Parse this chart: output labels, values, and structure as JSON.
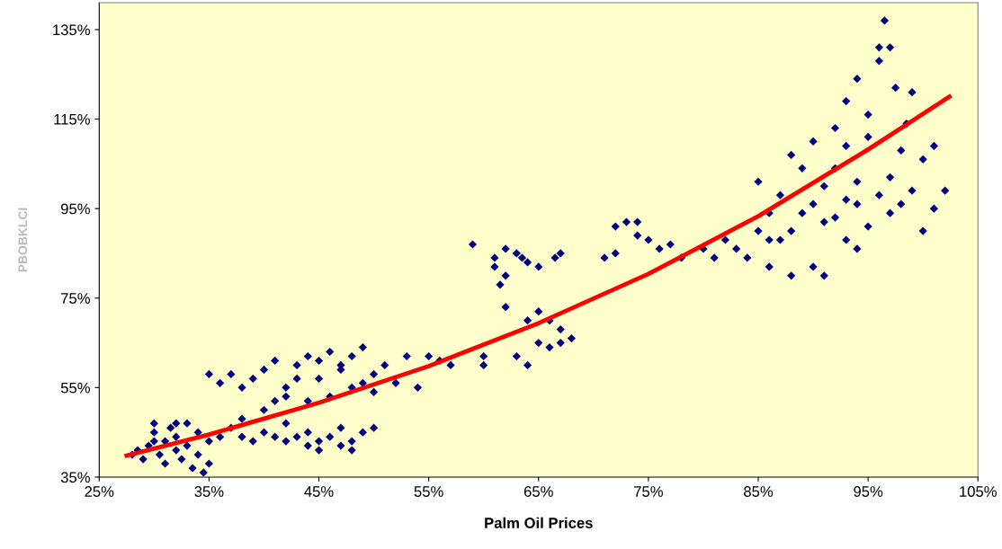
{
  "chart_data": {
    "type": "scatter",
    "xlabel": "Palm Oil Prices",
    "ylabel": "PBOBKLCI",
    "xlim": [
      25,
      105
    ],
    "ylim": [
      35,
      141
    ],
    "xticks": [
      {
        "value": 25,
        "label": "25%"
      },
      {
        "value": 35,
        "label": "35%"
      },
      {
        "value": 45,
        "label": "45%"
      },
      {
        "value": 55,
        "label": "55%"
      },
      {
        "value": 65,
        "label": "65%"
      },
      {
        "value": 75,
        "label": "75%"
      },
      {
        "value": 85,
        "label": "85%"
      },
      {
        "value": 95,
        "label": "95%"
      },
      {
        "value": 105,
        "label": "105%"
      }
    ],
    "yticks": [
      {
        "value": 35,
        "label": "35%"
      },
      {
        "value": 55,
        "label": "55%"
      },
      {
        "value": 75,
        "label": "75%"
      },
      {
        "value": 95,
        "label": "95%"
      },
      {
        "value": 115,
        "label": "115%"
      },
      {
        "value": 135,
        "label": "135%"
      }
    ],
    "grid": false,
    "legend": false,
    "series": [
      {
        "color": "#000080",
        "marker": "diamond",
        "x": [
          28,
          29,
          29.5,
          30,
          30,
          30.5,
          31,
          31,
          31.5,
          32,
          32,
          32.5,
          33,
          33,
          33.5,
          34,
          34,
          34.5,
          35,
          35,
          28.5,
          30,
          32,
          36,
          37,
          38,
          39,
          40,
          41,
          42,
          43,
          44,
          45,
          46,
          47,
          48,
          49,
          50,
          42,
          45,
          47,
          44,
          48,
          35,
          36,
          37,
          38,
          39,
          40,
          41,
          42,
          43,
          44,
          45,
          46,
          47,
          48,
          49,
          50,
          51,
          52,
          53,
          54,
          55,
          56,
          57,
          38,
          40,
          42,
          44,
          46,
          47,
          49,
          43,
          41,
          48,
          45,
          50,
          59,
          60,
          60,
          61,
          61,
          62,
          62,
          62,
          63,
          63,
          64,
          64,
          64,
          65,
          65,
          65,
          66,
          66,
          66.5,
          67,
          67,
          67,
          68,
          61.5,
          63.5,
          71,
          72,
          72,
          73,
          74,
          74,
          75,
          76,
          77,
          78,
          80,
          81,
          82,
          83,
          84,
          85,
          85,
          86,
          86,
          87,
          87,
          88,
          88,
          89,
          89,
          90,
          90,
          90,
          91,
          91,
          92,
          92,
          92,
          93,
          93,
          93,
          94,
          94,
          94,
          95,
          95,
          95,
          96,
          96,
          96,
          96.5,
          97,
          97,
          97,
          97.5,
          98,
          98,
          98.5,
          99,
          99,
          100,
          100,
          101,
          101,
          102,
          88,
          91,
          93,
          86,
          94
        ],
        "values": [
          40,
          39,
          42,
          45,
          47,
          40,
          43,
          38,
          46,
          41,
          44,
          39,
          47,
          42,
          37,
          40,
          45,
          36,
          38,
          43,
          41,
          43,
          47,
          44,
          46,
          44,
          43,
          45,
          44,
          43,
          44,
          45,
          43,
          44,
          42,
          43,
          45,
          46,
          47,
          41,
          46,
          42,
          41,
          58,
          56,
          58,
          55,
          57,
          59,
          52,
          55,
          60,
          62,
          57,
          63,
          60,
          55,
          64,
          58,
          60,
          56,
          62,
          55,
          62,
          61,
          60,
          48,
          50,
          53,
          52,
          53,
          59,
          56,
          57,
          61,
          62,
          61,
          54,
          87,
          62,
          60,
          84,
          82,
          86,
          80,
          73,
          85,
          62,
          83,
          70,
          60,
          72,
          65,
          82,
          70,
          64,
          84,
          65,
          68,
          85,
          66,
          78,
          84,
          84,
          91,
          85,
          92,
          89,
          92,
          88,
          86,
          87,
          84,
          86,
          84,
          88,
          86,
          84,
          90,
          101,
          94,
          82,
          98,
          88,
          107,
          80,
          94,
          104,
          82,
          96,
          110,
          80,
          100,
          93,
          104,
          113,
          109,
          97,
          119,
          101,
          96,
          124,
          111,
          91,
          116,
          128,
          131,
          98,
          137,
          131,
          102,
          94,
          122,
          108,
          96,
          114,
          99,
          121,
          90,
          106,
          95,
          109,
          99,
          90,
          92,
          88,
          88,
          86
        ]
      },
      {
        "type": "line",
        "color": "#ff0000",
        "marker": "none",
        "line_style": "solid",
        "x": [
          27.5,
          35,
          45,
          55,
          65,
          75,
          85,
          95,
          102.4
        ],
        "values": [
          39.8,
          44.5,
          51.6,
          59.8,
          69.4,
          80.4,
          93.3,
          108.2,
          120
        ]
      }
    ]
  }
}
